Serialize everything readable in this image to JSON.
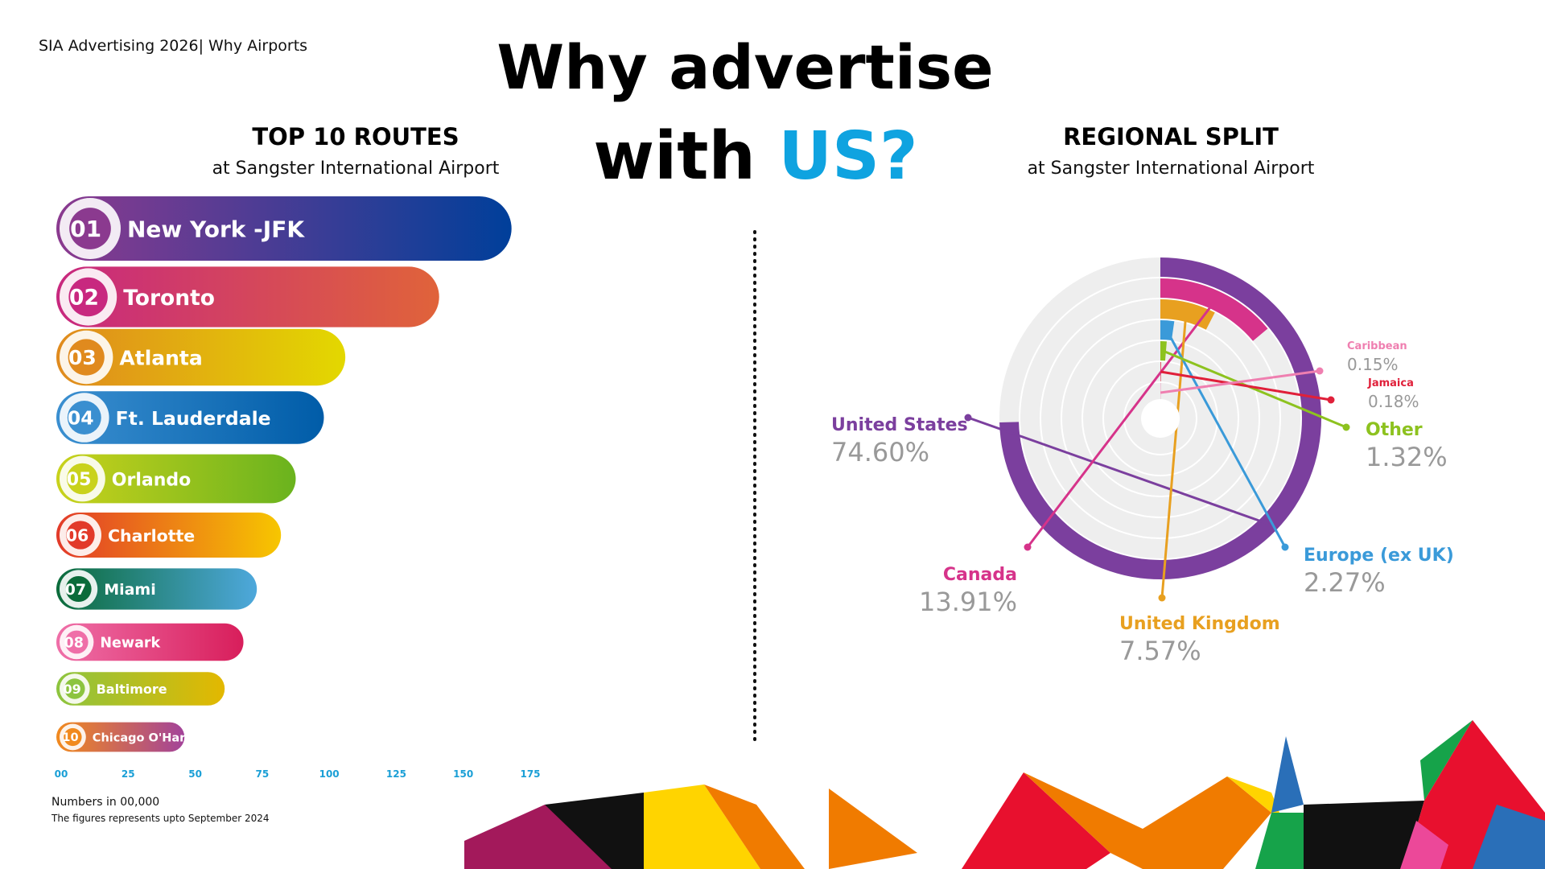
{
  "header": {
    "brand": "SIA Advertising 2026| Why Airports",
    "title_line1": "Why advertise",
    "title_line2": "with",
    "title_highlight": "US?"
  },
  "chart_data": [
    {
      "type": "bar",
      "orientation": "horizontal",
      "title": "TOP 10 ROUTES",
      "subtitle": "at Sangster International Airport",
      "ranks": [
        "01",
        "02",
        "03",
        "04",
        "05",
        "06",
        "07",
        "08",
        "09",
        "10"
      ],
      "categories": [
        "New York -JFK",
        "Toronto",
        "Atlanta",
        "Ft. Lauderdale",
        "Orlando",
        "Charlotte",
        "Miami",
        "Newark",
        "Baltimore",
        "Chicago O'Hare"
      ],
      "values": [
        168,
        141,
        106,
        98,
        87.5,
        82,
        73,
        68,
        61,
        46
      ],
      "colors": [
        [
          "#8b3a8f",
          "#003f9a"
        ],
        [
          "#c8287f",
          "#e0633a"
        ],
        [
          "#e08a1e",
          "#e3d800"
        ],
        [
          "#3a8fd0",
          "#005ca8"
        ],
        [
          "#c9d21c",
          "#6ab31e"
        ],
        [
          "#e23a2a",
          "#f7c600"
        ],
        [
          "#0b6b3a",
          "#4ea8dc"
        ],
        [
          "#ef6fa8",
          "#d81e5b"
        ],
        [
          "#8cc43f",
          "#e3b800"
        ],
        [
          "#f18a1e",
          "#a3439a"
        ]
      ],
      "xlim": [
        0,
        175
      ],
      "xticks": [
        {
          "value": 0,
          "label": "00"
        },
        25,
        50,
        75,
        100,
        125,
        150,
        175
      ],
      "notes": [
        "Numbers in 00,000",
        "The figures represents upto September 2024"
      ]
    },
    {
      "type": "radial_bar",
      "title": "REGIONAL SPLIT",
      "subtitle": "at Sangster International Airport",
      "categories": [
        "United States",
        "Canada",
        "United Kingdom",
        "Europe (ex UK)",
        "Other",
        "Jamaica",
        "Caribbean"
      ],
      "values": [
        74.6,
        13.91,
        7.57,
        2.27,
        1.32,
        0.18,
        0.15
      ],
      "value_labels": [
        "74.60%",
        "13.91%",
        "7.57%",
        "2.27%",
        "1.32%",
        "0.18%",
        "0.15%"
      ],
      "colors": [
        "#7b3f9e",
        "#d6338a",
        "#e8a020",
        "#3a9ad9",
        "#8dc21f",
        "#e0203a",
        "#ef7fb0"
      ]
    }
  ]
}
